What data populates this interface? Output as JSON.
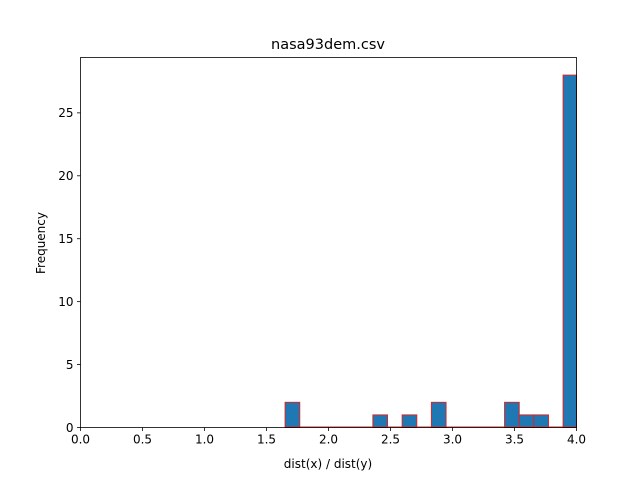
{
  "chart_data": {
    "type": "bar",
    "title": "nasa93dem.csv",
    "xlabel": "dist(x) / dist(y)",
    "ylabel": "Frequency",
    "xlim": [
      0,
      4
    ],
    "ylim": [
      0,
      29.4
    ],
    "xticks": [
      "0.0",
      "0.5",
      "1.0",
      "1.5",
      "2.0",
      "2.5",
      "3.0",
      "3.5",
      "4.0"
    ],
    "yticks": [
      "0",
      "5",
      "10",
      "15",
      "20",
      "25"
    ],
    "bin_width": 0.118,
    "bars": [
      {
        "x0": 1.65,
        "x1": 1.768,
        "count": 2
      },
      {
        "x0": 2.358,
        "x1": 2.476,
        "count": 1
      },
      {
        "x0": 2.594,
        "x1": 2.712,
        "count": 1
      },
      {
        "x0": 2.83,
        "x1": 2.948,
        "count": 2
      },
      {
        "x0": 3.42,
        "x1": 3.538,
        "count": 2
      },
      {
        "x0": 3.538,
        "x1": 3.656,
        "count": 1
      },
      {
        "x0": 3.656,
        "x1": 3.774,
        "count": 1
      },
      {
        "x0": 3.892,
        "x1": 4.01,
        "count": 28
      }
    ],
    "bar_color": "#1f77b4",
    "edge_color": "#d62728",
    "grid": false,
    "legend": "none"
  }
}
